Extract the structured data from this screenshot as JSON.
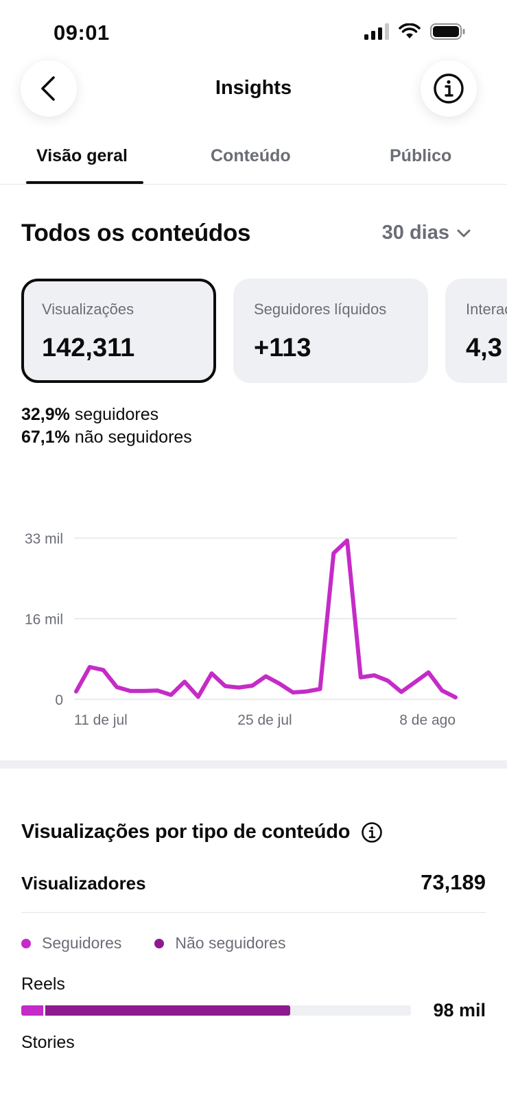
{
  "status": {
    "time": "09:01"
  },
  "nav": {
    "title": "Insights"
  },
  "tabs": [
    {
      "label": "Visão geral",
      "active": true
    },
    {
      "label": "Conteúdo",
      "active": false
    },
    {
      "label": "Público",
      "active": false
    }
  ],
  "overview": {
    "title": "Todos os conteúdos",
    "range": "30 dias",
    "metrics": [
      {
        "label": "Visualizações",
        "value": "142,311"
      },
      {
        "label": "Seguidores líquidos",
        "value": "+113"
      },
      {
        "label": "Interações",
        "value": "4,3"
      }
    ],
    "split": {
      "followers_pct": "32,9%",
      "followers_label": "seguidores",
      "nonfollowers_pct": "67,1%",
      "nonfollowers_label": "não seguidores"
    }
  },
  "chart_data": {
    "type": "line",
    "y_ticks": [
      "33 mil",
      "16 mil",
      "0"
    ],
    "x_ticks": [
      "11 de jul",
      "25 de jul",
      "8 de ago"
    ],
    "ylim": [
      0,
      33000
    ],
    "grid": true,
    "color": "#c52bc7",
    "values": [
      1600,
      6600,
      6000,
      2500,
      1700,
      1700,
      1800,
      900,
      3600,
      500,
      5300,
      2700,
      2400,
      2800,
      4700,
      3200,
      1400,
      1600,
      2100,
      29900,
      32500,
      4500,
      4900,
      3800,
      1500,
      3500,
      5500,
      1800,
      400
    ]
  },
  "by_type": {
    "title": "Visualizações por tipo de conteúdo",
    "viewers_label": "Visualizadores",
    "viewers_value": "73,189",
    "legend": [
      {
        "label": "Seguidores",
        "color": "#c52bc7"
      },
      {
        "label": "Não seguidores",
        "color": "#8e1a8f"
      }
    ],
    "rows": [
      {
        "label": "Reels",
        "value": "98 mil",
        "followers_fraction": 0.06,
        "nonfollowers_fraction": 0.63
      },
      {
        "label": "Stories"
      }
    ]
  },
  "colors": {
    "accent": "#c52bc7",
    "accent_dark": "#8e1a8f",
    "card_bg": "#eff0f4",
    "muted_text": "#6b6d76"
  }
}
